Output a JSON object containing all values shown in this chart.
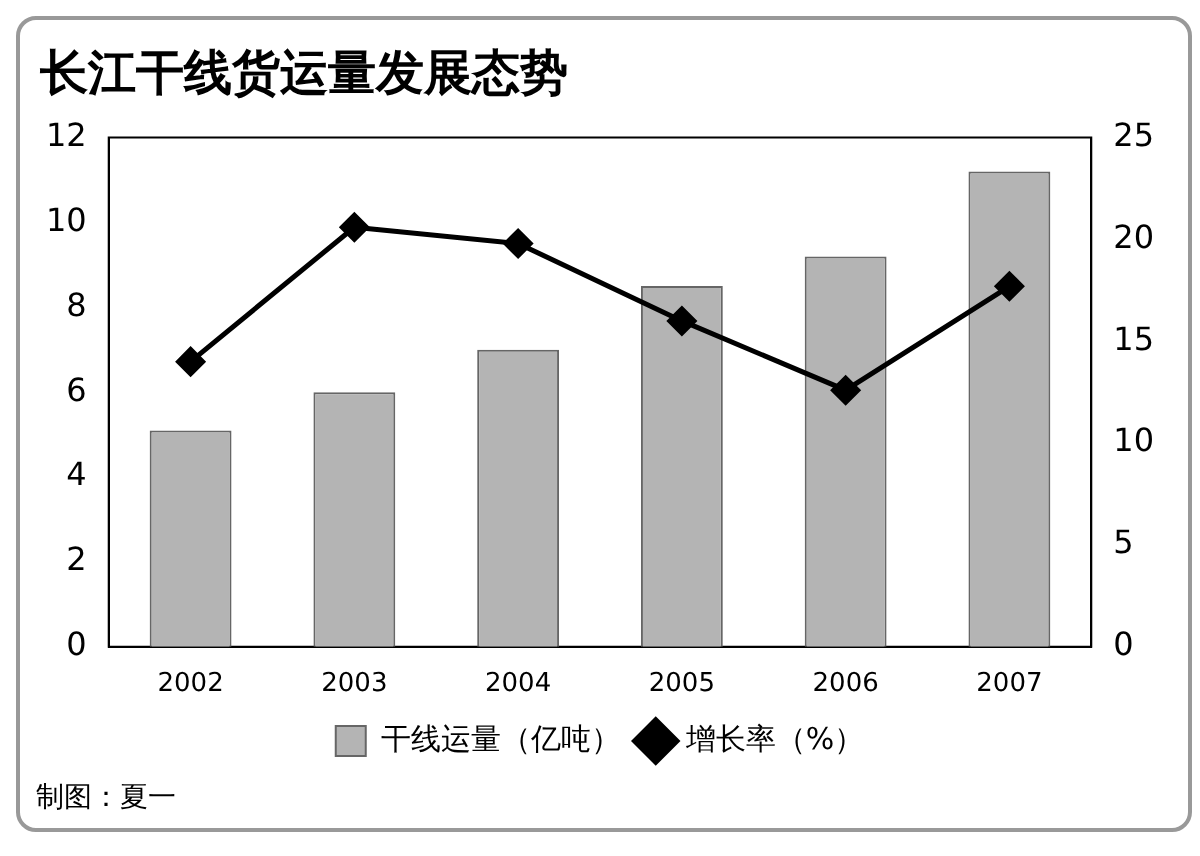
{
  "chart_data": {
    "type": "bar",
    "title": "长江干线货运量发展态势",
    "categories": [
      "2002",
      "2003",
      "2004",
      "2005",
      "2006",
      "2007"
    ],
    "series": [
      {
        "name": "干线运量（亿吨）",
        "color": "#b4b4b4",
        "values": [
          5.1,
          6.0,
          7.0,
          8.5,
          9.2,
          11.2
        ]
      },
      {
        "name": "增长率（%）",
        "type": "line",
        "axis": "y2",
        "color": "#000000",
        "marker": "diamond",
        "values": [
          14.0,
          20.6,
          19.8,
          16.0,
          12.6,
          17.7
        ]
      }
    ],
    "ylim": [
      0,
      12
    ],
    "yticks": [
      0,
      2,
      4,
      6,
      8,
      10,
      12
    ],
    "y2lim": [
      0,
      25
    ],
    "y2ticks": [
      0,
      5,
      10,
      15,
      20,
      25
    ],
    "grid": false,
    "legend": "bottom",
    "annotations": [
      "制图：夏一"
    ]
  }
}
